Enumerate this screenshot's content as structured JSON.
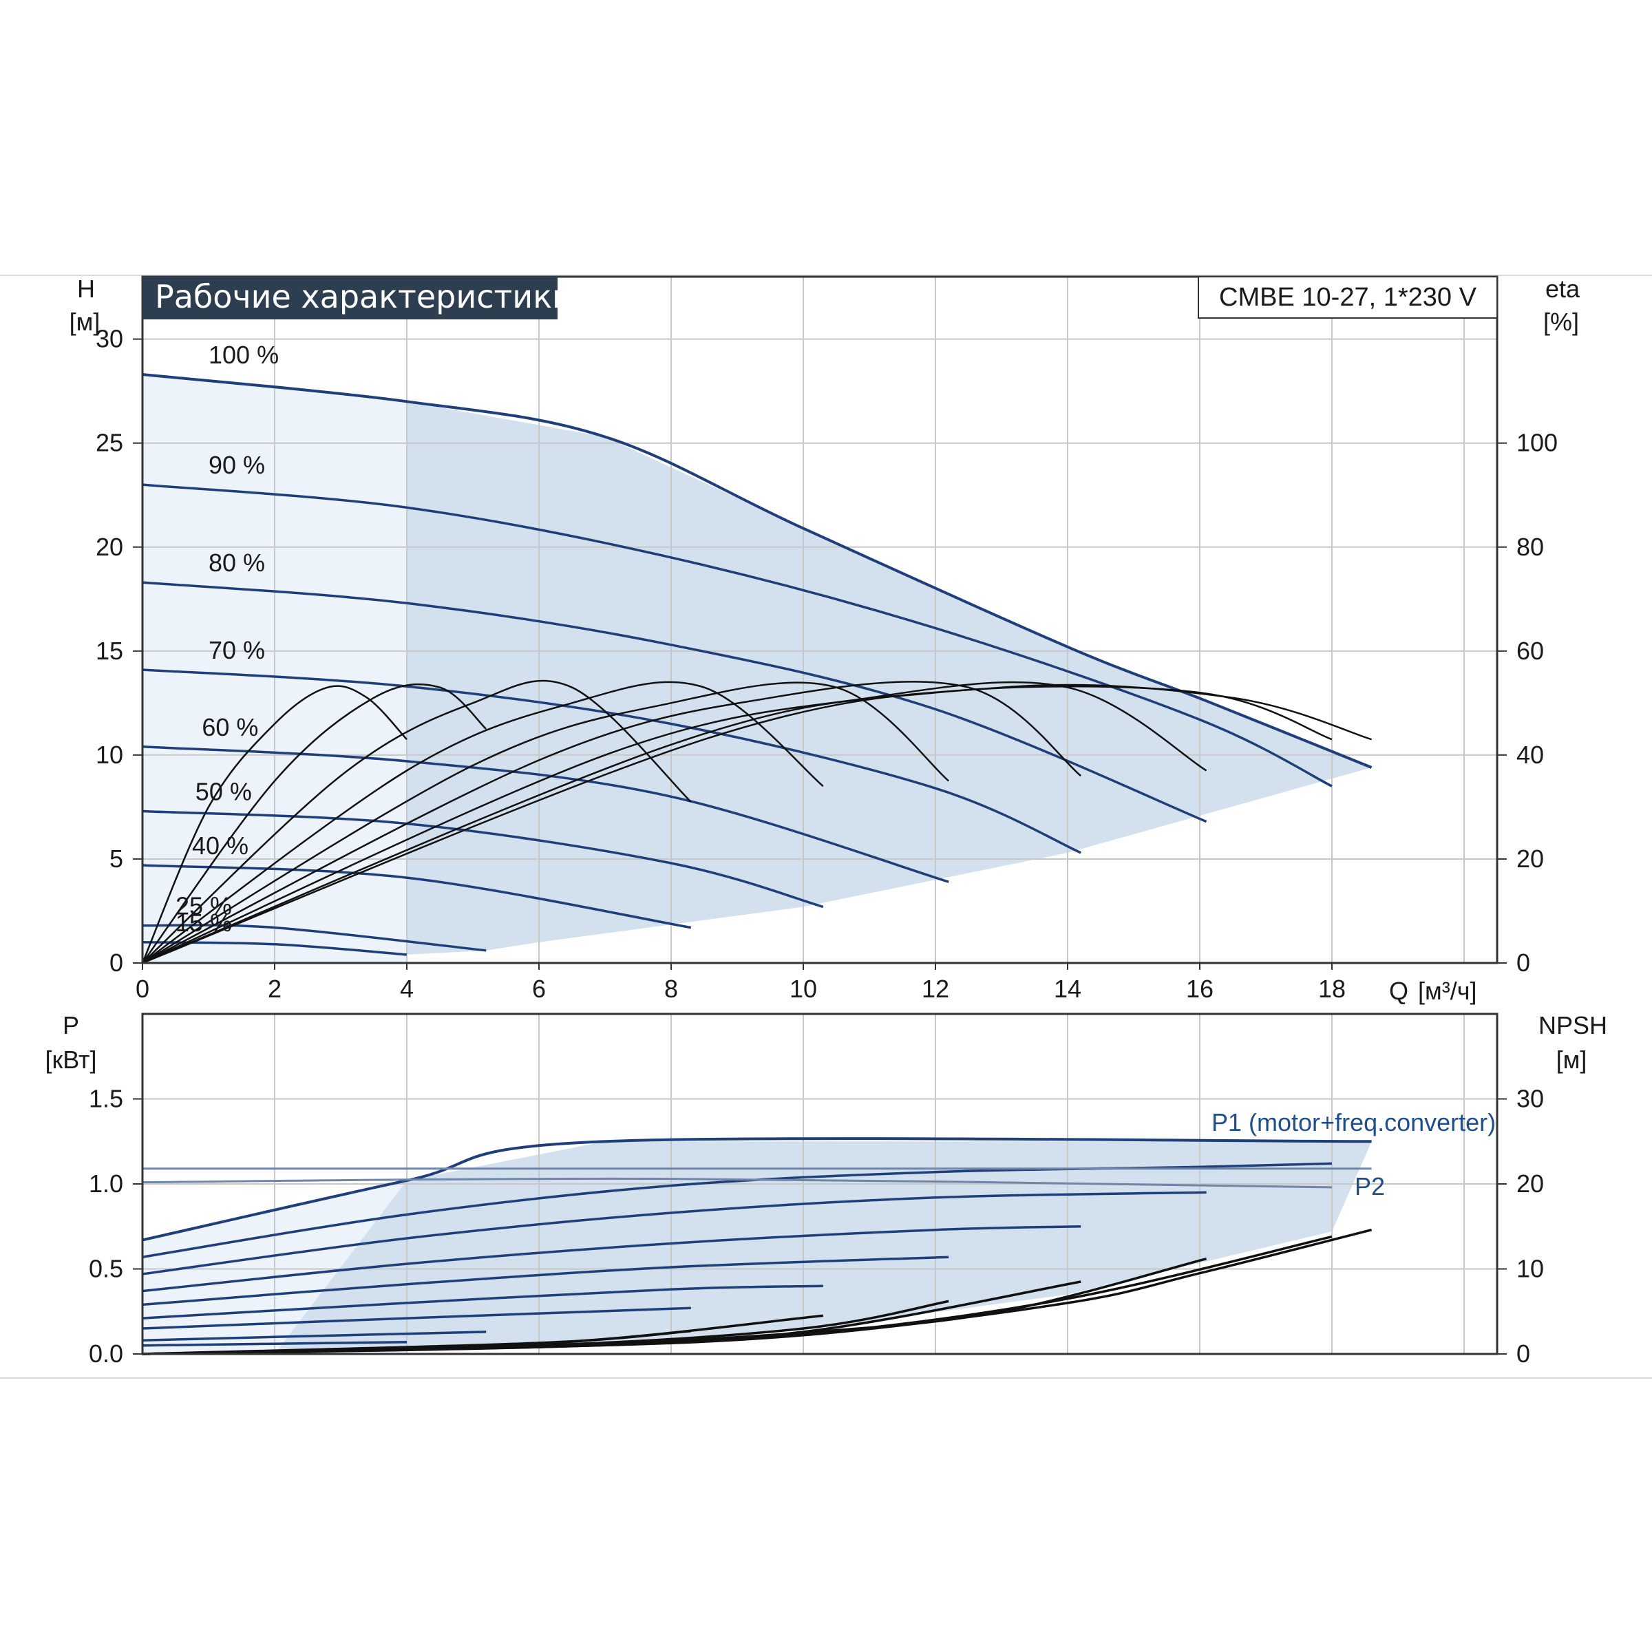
{
  "title": "Рабочие характеристики",
  "model": "CMBE 10-27, 1*230 V",
  "colors": {
    "curve_blue": "#1f3f7a",
    "eff_black": "#111111",
    "area_fill": "#d3e0ee",
    "area_light": "#ecf3fb",
    "grid": "#c8c8c8",
    "title_bg": "#2d3e50"
  },
  "chart_data": [
    {
      "type": "line",
      "name": "head",
      "x_axis": {
        "label": "Q",
        "unit": "[м³/ч]",
        "range": [
          0,
          20.5
        ],
        "ticks": [
          0,
          2,
          4,
          6,
          8,
          10,
          12,
          14,
          16,
          18
        ],
        "tick_labels": [
          "0",
          "2",
          "4",
          "6",
          "8",
          "10",
          "12",
          "14",
          "16",
          "18"
        ]
      },
      "y_axis": {
        "label": "H",
        "unit": "[м]",
        "range": [
          0,
          30
        ],
        "ticks": [
          0,
          5,
          10,
          15,
          20,
          25,
          30
        ],
        "tick_labels": [
          "0",
          "5",
          "10",
          "15",
          "20",
          "25",
          "30"
        ]
      },
      "y2_axis": {
        "label": "eta",
        "unit": "[%]",
        "range": [
          0,
          120
        ],
        "ticks": [
          0,
          20,
          40,
          60,
          80,
          100
        ],
        "tick_labels": [
          "0",
          "20",
          "40",
          "60",
          "80",
          "100"
        ]
      },
      "grid": true,
      "speed_curves": [
        {
          "label": "100 %",
          "points": [
            [
              0,
              28.3
            ],
            [
              4,
              27.0
            ],
            [
              7,
              25.3
            ],
            [
              10,
              20.9
            ],
            [
              14,
              15.2
            ],
            [
              16.1,
              12.6
            ],
            [
              18.6,
              9.4
            ]
          ]
        },
        {
          "label": "90 %",
          "points": [
            [
              0,
              23.0
            ],
            [
              4,
              21.9
            ],
            [
              8,
              19.5
            ],
            [
              12,
              16.1
            ],
            [
              16,
              11.7
            ],
            [
              18,
              8.5
            ]
          ]
        },
        {
          "label": "80 %",
          "points": [
            [
              0,
              18.3
            ],
            [
              4,
              17.3
            ],
            [
              8,
              15.3
            ],
            [
              12,
              12.2
            ],
            [
              16.1,
              6.8
            ]
          ]
        },
        {
          "label": "70 %",
          "points": [
            [
              0,
              14.1
            ],
            [
              4,
              13.3
            ],
            [
              8,
              11.5
            ],
            [
              12,
              8.4
            ],
            [
              14.2,
              5.3
            ]
          ]
        },
        {
          "label": "60 %",
          "points": [
            [
              0,
              10.4
            ],
            [
              4,
              9.7
            ],
            [
              8,
              8.0
            ],
            [
              12.2,
              3.9
            ]
          ]
        },
        {
          "label": "50 %",
          "points": [
            [
              0,
              7.3
            ],
            [
              4,
              6.7
            ],
            [
              8,
              4.8
            ],
            [
              10.3,
              2.7
            ]
          ]
        },
        {
          "label": "40 %",
          "points": [
            [
              0,
              4.7
            ],
            [
              4,
              4.1
            ],
            [
              8.3,
              1.7
            ]
          ]
        },
        {
          "label": "25 %",
          "points": [
            [
              0,
              1.8
            ],
            [
              2,
              1.7
            ],
            [
              5.2,
              0.6
            ]
          ]
        },
        {
          "label": "15 %",
          "points": [
            [
              0,
              1.0
            ],
            [
              2,
              0.9
            ],
            [
              4,
              0.4
            ]
          ]
        }
      ],
      "efficiency_curves_eta_pct": [
        {
          "points": [
            [
              0,
              0
            ],
            [
              1,
              30
            ],
            [
              2,
              46
            ],
            [
              2.8,
              53
            ],
            [
              3.4,
              51
            ],
            [
              4,
              43
            ]
          ]
        },
        {
          "points": [
            [
              0,
              0
            ],
            [
              2,
              35
            ],
            [
              3.5,
              51
            ],
            [
              4.5,
              53
            ],
            [
              5.2,
              45
            ]
          ]
        },
        {
          "points": [
            [
              0,
              0
            ],
            [
              3,
              36
            ],
            [
              5,
              50
            ],
            [
              6.5,
              53
            ],
            [
              8.3,
              31
            ]
          ]
        },
        {
          "points": [
            [
              0,
              0
            ],
            [
              4,
              37
            ],
            [
              6.5,
              50
            ],
            [
              8.5,
              53
            ],
            [
              10.3,
              34
            ]
          ]
        },
        {
          "points": [
            [
              0,
              0
            ],
            [
              5,
              38
            ],
            [
              8,
              50
            ],
            [
              10.5,
              53
            ],
            [
              12.2,
              35
            ]
          ]
        },
        {
          "points": [
            [
              0,
              0
            ],
            [
              6,
              39
            ],
            [
              9.5,
              51
            ],
            [
              12.5,
              53
            ],
            [
              14.2,
              36
            ]
          ]
        },
        {
          "points": [
            [
              0,
              0
            ],
            [
              7,
              40
            ],
            [
              11,
              51
            ],
            [
              14,
              53
            ],
            [
              16.1,
              37
            ]
          ]
        },
        {
          "points": [
            [
              0,
              0
            ],
            [
              8,
              42
            ],
            [
              12,
              52
            ],
            [
              16,
              52
            ],
            [
              18,
              43
            ]
          ]
        },
        {
          "points": [
            [
              0,
              0
            ],
            [
              8.5,
              43
            ],
            [
              13,
              53
            ],
            [
              16.5,
              51
            ],
            [
              18.6,
              43
            ]
          ]
        }
      ]
    },
    {
      "type": "line",
      "name": "power",
      "x_axis": {
        "range": [
          0,
          20.5
        ],
        "ticks": [
          0,
          2,
          4,
          6,
          8,
          10,
          12,
          14,
          16,
          18
        ]
      },
      "y_axis": {
        "label": "P",
        "unit": "[кВт]",
        "range": [
          0,
          2.0
        ],
        "ticks": [
          0,
          0.5,
          1.0,
          1.5
        ],
        "tick_labels": [
          "0.0",
          "0.5",
          "1.0",
          "1.5"
        ]
      },
      "y2_axis": {
        "label": "NPSH",
        "unit": "[м]",
        "range": [
          0,
          40
        ],
        "ticks": [
          0,
          10,
          20,
          30
        ],
        "tick_labels": [
          "0",
          "10",
          "20",
          "30"
        ]
      },
      "grid": true,
      "series_labels": {
        "p1": "P1 (motor+freq.converter)",
        "p2": "P2"
      },
      "p1_curves": [
        {
          "points": [
            [
              0,
              0.67
            ],
            [
              4,
              1.02
            ],
            [
              7,
              1.25
            ],
            [
              18.6,
              1.25
            ]
          ]
        },
        {
          "points": [
            [
              0,
              0.57
            ],
            [
              4,
              0.82
            ],
            [
              8,
              0.99
            ],
            [
              12,
              1.07
            ],
            [
              16,
              1.1
            ],
            [
              18,
              1.12
            ]
          ]
        },
        {
          "points": [
            [
              0,
              0.47
            ],
            [
              4,
              0.68
            ],
            [
              8,
              0.83
            ],
            [
              12,
              0.92
            ],
            [
              16.1,
              0.95
            ]
          ]
        },
        {
          "points": [
            [
              0,
              0.37
            ],
            [
              4,
              0.53
            ],
            [
              8,
              0.65
            ],
            [
              12,
              0.73
            ],
            [
              14.2,
              0.75
            ]
          ]
        },
        {
          "points": [
            [
              0,
              0.29
            ],
            [
              4,
              0.41
            ],
            [
              8,
              0.51
            ],
            [
              12.2,
              0.57
            ]
          ]
        },
        {
          "points": [
            [
              0,
              0.21
            ],
            [
              4,
              0.3
            ],
            [
              8,
              0.38
            ],
            [
              10.3,
              0.4
            ]
          ]
        },
        {
          "points": [
            [
              0,
              0.15
            ],
            [
              4,
              0.21
            ],
            [
              8.3,
              0.27
            ]
          ]
        },
        {
          "points": [
            [
              0,
              0.08
            ],
            [
              2,
              0.1
            ],
            [
              5.2,
              0.13
            ]
          ]
        },
        {
          "points": [
            [
              0,
              0.05
            ],
            [
              2,
              0.06
            ],
            [
              4,
              0.07
            ]
          ]
        }
      ],
      "p2_curves": [
        {
          "points": [
            [
              0,
              1.09
            ],
            [
              18.6,
              1.09
            ]
          ]
        },
        {
          "points": [
            [
              0,
              1.01
            ],
            [
              8,
              1.03
            ],
            [
              18,
              0.98
            ]
          ]
        }
      ],
      "npsh_curves": [
        {
          "points": [
            [
              0,
              0
            ],
            [
              6,
              0.8
            ],
            [
              10,
              2.2
            ],
            [
              14,
              6.0
            ],
            [
              16,
              9.5
            ],
            [
              18.6,
              14.6
            ]
          ]
        },
        {
          "points": [
            [
              0,
              0
            ],
            [
              6,
              0.8
            ],
            [
              10,
              2.3
            ],
            [
              14,
              6.5
            ],
            [
              18,
              13.8
            ]
          ]
        },
        {
          "points": [
            [
              0,
              0
            ],
            [
              6,
              0.9
            ],
            [
              10,
              2.5
            ],
            [
              13,
              5.0
            ],
            [
              16.1,
              11.2
            ]
          ]
        },
        {
          "points": [
            [
              0,
              0
            ],
            [
              6,
              0.9
            ],
            [
              10,
              2.6
            ],
            [
              14.2,
              8.5
            ]
          ]
        },
        {
          "points": [
            [
              0,
              0
            ],
            [
              6,
              1.0
            ],
            [
              10,
              3.0
            ],
            [
              12.2,
              6.2
            ]
          ]
        },
        {
          "points": [
            [
              0,
              0
            ],
            [
              6,
              1.2
            ],
            [
              10.3,
              4.5
            ]
          ]
        },
        {
          "points": [
            [
              0,
              0
            ],
            [
              6,
              1.3
            ],
            [
              8.3,
              2.7
            ]
          ]
        }
      ]
    }
  ]
}
